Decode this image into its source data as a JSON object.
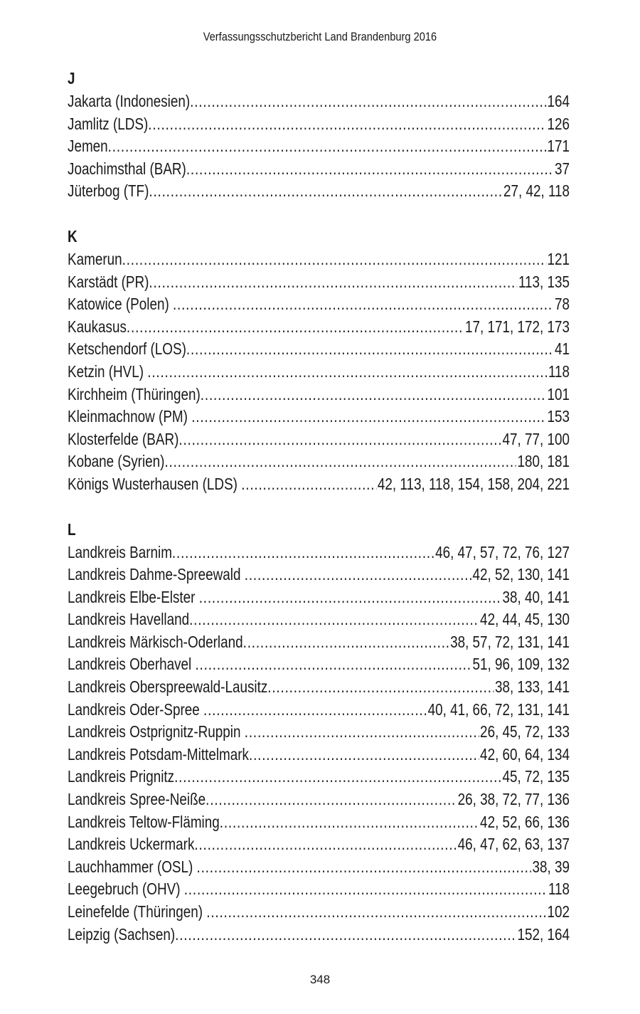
{
  "header": {
    "title": "Verfassungsschutzbericht Land Brandenburg 2016"
  },
  "sections": [
    {
      "letter": "J",
      "entries": [
        {
          "name": "Jakarta (Indonesien)",
          "pages": "164"
        },
        {
          "name": "Jamlitz (LDS)",
          "pages": "126"
        },
        {
          "name": "Jemen",
          "pages": "171"
        },
        {
          "name": "Joachimsthal (BAR)",
          "pages": "37"
        },
        {
          "name": "Jüterbog (TF)",
          "pages": "27, 42, 118"
        }
      ]
    },
    {
      "letter": "K",
      "entries": [
        {
          "name": "Kamerun",
          "pages": "121"
        },
        {
          "name": "Karstädt (PR)",
          "pages": "113, 135"
        },
        {
          "name": "Katowice (Polen) ",
          "pages": "78"
        },
        {
          "name": "Kaukasus",
          "pages": "17, 171, 172, 173"
        },
        {
          "name": "Ketschendorf (LOS)",
          "pages": "41"
        },
        {
          "name": "Ketzin (HVL) ",
          "pages": "118"
        },
        {
          "name": "Kirchheim (Thüringen)",
          "pages": "101"
        },
        {
          "name": "Kleinmachnow (PM) ",
          "pages": "153"
        },
        {
          "name": "Klosterfelde (BAR)",
          "pages": "47, 77, 100"
        },
        {
          "name": "Kobane (Syrien)",
          "pages": "180, 181"
        },
        {
          "name": "Königs Wusterhausen (LDS) ",
          "pages": "42, 113, 118, 154, 158, 204, 221"
        }
      ]
    },
    {
      "letter": "L",
      "entries": [
        {
          "name": "Landkreis Barnim",
          "pages": "46, 47, 57, 72, 76, 127"
        },
        {
          "name": "Landkreis Dahme-Spreewald ",
          "pages": "42, 52, 130, 141"
        },
        {
          "name": "Landkreis Elbe-Elster ",
          "pages": "38, 40, 141"
        },
        {
          "name": "Landkreis Havelland",
          "pages": "42, 44, 45, 130"
        },
        {
          "name": "Landkreis Märkisch-Oderland",
          "pages": "38, 57, 72, 131, 141"
        },
        {
          "name": "Landkreis Oberhavel ",
          "pages": "51, 96, 109, 132"
        },
        {
          "name": "Landkreis Oberspreewald-Lausitz",
          "pages": "38, 133, 141"
        },
        {
          "name": "Landkreis Oder-Spree ",
          "pages": "40, 41, 66, 72, 131, 141"
        },
        {
          "name": "Landkreis Ostprignitz-Ruppin ",
          "pages": "26, 45, 72, 133"
        },
        {
          "name": "Landkreis Potsdam-Mittelmark",
          "pages": "42, 60, 64, 134"
        },
        {
          "name": "Landkreis Prignitz",
          "pages": "45, 72, 135"
        },
        {
          "name": "Landkreis Spree-Neiße",
          "pages": "26, 38, 72, 77, 136"
        },
        {
          "name": "Landkreis Teltow-Fläming",
          "pages": "42, 52, 66, 136"
        },
        {
          "name": "Landkreis Uckermark",
          "pages": "46, 47, 62, 63, 137"
        },
        {
          "name": "Lauchhammer (OSL) ",
          "pages": "38, 39"
        },
        {
          "name": "Leegebruch (OHV) ",
          "pages": "118"
        },
        {
          "name": "Leinefelde (Thüringen) ",
          "pages": "102"
        },
        {
          "name": "Leipzig (Sachsen)",
          "pages": "152, 164"
        }
      ]
    }
  ],
  "footer": {
    "page_number": "348"
  }
}
